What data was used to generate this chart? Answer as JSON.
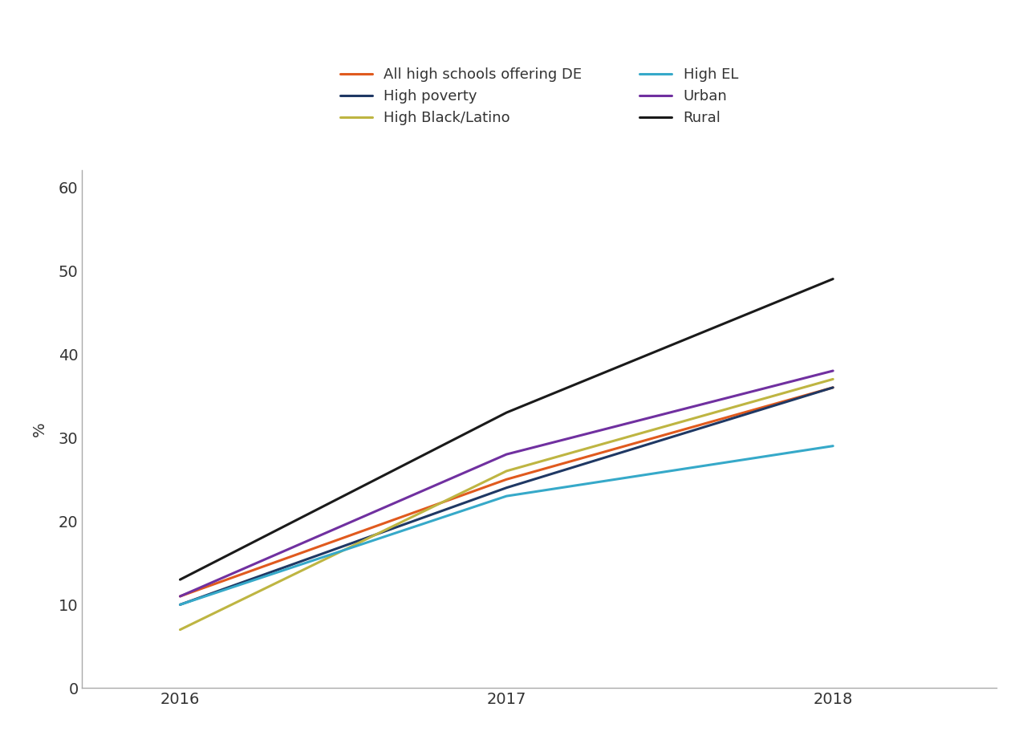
{
  "ylabel": "%",
  "years": [
    2016,
    2017,
    2018
  ],
  "series": [
    {
      "label": "All high schools offering DE",
      "color": "#E05A1E",
      "values": [
        11,
        25,
        36
      ]
    },
    {
      "label": "High poverty",
      "color": "#1F3864",
      "values": [
        10,
        24,
        36
      ]
    },
    {
      "label": "High Black/Latino",
      "color": "#BEB542",
      "values": [
        7,
        26,
        37
      ]
    },
    {
      "label": "High EL",
      "color": "#36A9C9",
      "values": [
        10,
        23,
        29
      ]
    },
    {
      "label": "Urban",
      "color": "#7030A0",
      "values": [
        11,
        28,
        38
      ]
    },
    {
      "label": "Rural",
      "color": "#1A1A1A",
      "values": [
        13,
        33,
        49
      ]
    }
  ],
  "ylim": [
    0,
    62
  ],
  "yticks": [
    0,
    10,
    20,
    30,
    40,
    50,
    60
  ],
  "xticks": [
    2016,
    2017,
    2018
  ],
  "linewidth": 2.2,
  "background_color": "#FFFFFF",
  "axis_color": "#AAAAAA",
  "tick_label_fontsize": 14,
  "ylabel_fontsize": 14,
  "legend_fontsize": 13,
  "legend_order_col1": [
    0,
    2,
    4
  ],
  "legend_order_col2": [
    1,
    3,
    5
  ]
}
